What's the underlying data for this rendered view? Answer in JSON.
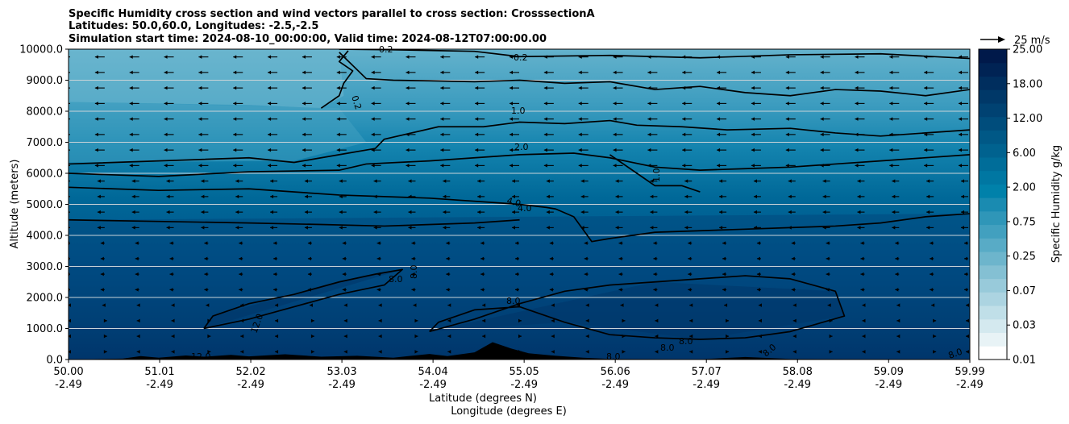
{
  "chart_data": {
    "type": "contour",
    "title_lines": [
      "Specific Humidity cross section and wind vectors parallel to cross section: CrosssectionA",
      "Latitudes: 50.0,60.0, Longitudes: -2.5,-2.5",
      "Simulation start time: 2024-08-10_00:00:00, Valid time: 2024-08-12T07:00:00.00"
    ],
    "ylabel": "Altitude (meters)",
    "xlabel_lines": [
      "Latitude (degrees N)",
      "Longitude (degrees E)"
    ],
    "ylim": [
      0,
      10000
    ],
    "y_ticks": [
      0,
      1000,
      2000,
      3000,
      4000,
      5000,
      6000,
      7000,
      8000,
      9000,
      10000
    ],
    "y_tick_labels": [
      "0.0",
      "1000.0",
      "2000.0",
      "3000.0",
      "4000.0",
      "5000.0",
      "6000.0",
      "7000.0",
      "8000.0",
      "9000.0",
      "10000.0"
    ],
    "xlim": [
      50.0,
      59.99
    ],
    "x_ticks": [
      50.0,
      51.01,
      52.02,
      53.03,
      54.04,
      55.05,
      56.06,
      57.07,
      58.08,
      59.09,
      59.99
    ],
    "x_tick_labels_lat": [
      "50.00",
      "51.01",
      "52.02",
      "53.03",
      "54.04",
      "55.05",
      "56.06",
      "57.07",
      "58.08",
      "59.09",
      "59.99"
    ],
    "x_tick_labels_lon": [
      "-2.49",
      "-2.49",
      "-2.49",
      "-2.49",
      "-2.49",
      "-2.49",
      "-2.49",
      "-2.49",
      "-2.49",
      "-2.49",
      "-2.49"
    ],
    "grid": "horizontal",
    "colorbar": {
      "label": "Specific Humidity g/kg",
      "tick_labels": [
        "0.01",
        "0.03",
        "0.07",
        "0.25",
        "0.75",
        "2.00",
        "6.00",
        "12.00",
        "18.00",
        "25.00"
      ],
      "colors": [
        "#ffffff",
        "#e8f3f6",
        "#d4e9ef",
        "#c0dfe8",
        "#acd4e1",
        "#98cada",
        "#84c0d3",
        "#6db5cc",
        "#58abc6",
        "#42a0bf",
        "#2f96b8",
        "#1a8bb1",
        "#0081aa",
        "#0077a2",
        "#006d99",
        "#00628f",
        "#005886",
        "#004d7c",
        "#004272",
        "#003868",
        "#002e5e",
        "#002354",
        "#00194a"
      ]
    },
    "wind_key": {
      "label": "25 m/s"
    },
    "contour_labels": [
      "0.2",
      "0.2",
      "0.2",
      "1.0",
      "1.0",
      "2.0",
      "4.0",
      "4.0",
      "8.0",
      "8.0",
      "8.0",
      "8.0",
      "8.0",
      "12.0",
      "12.0",
      "8.0",
      "8.0",
      "8.0"
    ],
    "contours": [
      {
        "level": 0.2,
        "x": [
          53.0,
          53.6,
          54.5,
          55.0,
          56.0,
          57.0,
          58.0,
          59.0,
          59.99
        ],
        "y": [
          10000,
          9980,
          9930,
          9760,
          9800,
          9720,
          9820,
          9850,
          9700
        ]
      },
      {
        "level": 0.2,
        "x": [
          53.1,
          53.0,
          53.15,
          53.05,
          53.0,
          52.8
        ],
        "y": [
          9950,
          9600,
          9300,
          8900,
          8500,
          8100
        ]
      },
      {
        "level": 1.0,
        "x": [
          53.0,
          53.3,
          53.6,
          54.0,
          54.5,
          55.0,
          55.5,
          56.0,
          56.5,
          57.0,
          57.5,
          58.0,
          58.5,
          59.0,
          59.5,
          59.99
        ],
        "y": [
          9900,
          9050,
          9000,
          8980,
          8950,
          9000,
          8900,
          8950,
          8700,
          8800,
          8600,
          8500,
          8700,
          8650,
          8500,
          8700
        ]
      },
      {
        "level": 1.0,
        "x": [
          50.0,
          51.0,
          52.0,
          52.5,
          53.0,
          53.4,
          53.5,
          54.1,
          54.6,
          55.0,
          55.5,
          56.0,
          56.3,
          56.8,
          57.3,
          58.0,
          58.5,
          59.0,
          59.99
        ],
        "y": [
          6300,
          6400,
          6500,
          6350,
          6600,
          6800,
          7100,
          7500,
          7500,
          7650,
          7600,
          7700,
          7550,
          7500,
          7400,
          7450,
          7300,
          7200,
          7400
        ]
      },
      {
        "level": 2.0,
        "x": [
          50.0,
          51.0,
          52.0,
          53.0,
          53.3,
          54.0,
          54.5,
          55.0,
          55.6,
          56.0,
          56.5,
          57.0,
          57.5,
          58.0,
          58.5,
          59.0,
          59.99
        ],
        "y": [
          6000,
          5900,
          6050,
          6100,
          6300,
          6400,
          6500,
          6600,
          6650,
          6500,
          6200,
          6100,
          6150,
          6200,
          6300,
          6400,
          6600
        ]
      },
      {
        "level": 2.0,
        "x": [
          56.0,
          56.3,
          56.5,
          56.8,
          57.0
        ],
        "y": [
          6600,
          6000,
          5600,
          5600,
          5400
        ]
      },
      {
        "level": 4.0,
        "x": [
          50.0,
          51.0,
          52.0,
          53.0,
          54.0,
          55.0,
          55.3,
          55.4,
          55.6,
          55.8,
          56.0,
          56.5,
          57.0,
          57.5,
          58.0,
          58.5,
          59.0,
          59.5,
          59.99
        ],
        "y": [
          5550,
          5450,
          5500,
          5300,
          5200,
          5000,
          4900,
          4850,
          4600,
          3800,
          3900,
          4100,
          4150,
          4200,
          4250,
          4300,
          4400,
          4600,
          4700
        ]
      },
      {
        "level": 4.0,
        "x": [
          50.0,
          51.0,
          52.0,
          52.8,
          53.5,
          54.5,
          55.0
        ],
        "y": [
          4500,
          4450,
          4400,
          4350,
          4300,
          4400,
          4500
        ]
      },
      {
        "level": 8.0,
        "x": [
          51.5,
          52.0,
          52.5,
          53.0,
          53.5,
          53.7,
          53.4,
          53.0,
          52.5,
          52.0,
          51.6,
          51.5
        ],
        "y": [
          1000,
          1300,
          1700,
          2100,
          2400,
          2900,
          2750,
          2500,
          2100,
          1800,
          1400,
          1000
        ]
      },
      {
        "level": 8.0,
        "x": [
          54.0,
          54.5,
          55.0,
          55.5,
          56.0,
          56.5,
          57.0,
          57.5,
          58.0,
          58.5,
          58.6,
          58.0,
          57.5,
          57.0,
          56.5,
          56.0,
          55.5,
          55.0,
          54.5,
          54.1,
          54.0
        ],
        "y": [
          900,
          1300,
          1800,
          2200,
          2400,
          2500,
          2600,
          2700,
          2600,
          2200,
          1400,
          900,
          700,
          650,
          700,
          800,
          1200,
          1700,
          1600,
          1200,
          900
        ]
      }
    ]
  }
}
